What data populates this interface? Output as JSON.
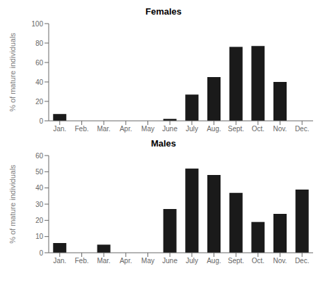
{
  "chart_data": [
    {
      "type": "bar",
      "title": "Females",
      "categories": [
        "Jan.",
        "Feb.",
        "Mar.",
        "Apr.",
        "May",
        "June",
        "July",
        "Aug.",
        "Sept.",
        "Oct.",
        "Nov.",
        "Dec."
      ],
      "values": [
        7,
        0,
        0,
        0,
        0,
        2,
        27,
        45,
        76,
        77,
        40,
        0
      ],
      "color": "#1a1a1a",
      "ylabel": "% of mature individuals",
      "ylim": [
        0,
        100
      ],
      "yticks": [
        0,
        20,
        40,
        60,
        80,
        100
      ],
      "grid": false
    },
    {
      "type": "bar",
      "title": "Males",
      "categories": [
        "Jan.",
        "Feb.",
        "Mar.",
        "Apr.",
        "May",
        "June",
        "July",
        "Aug.",
        "Sept.",
        "Oct.",
        "Nov.",
        "Dec."
      ],
      "values": [
        6,
        0,
        5,
        0,
        0,
        27,
        52,
        48,
        37,
        19,
        24,
        39
      ],
      "color": "#1a1a1a",
      "ylabel": "% of mature individuals",
      "ylim": [
        0,
        60
      ],
      "yticks": [
        0,
        10,
        20,
        30,
        40,
        50,
        60
      ],
      "grid": false
    }
  ]
}
